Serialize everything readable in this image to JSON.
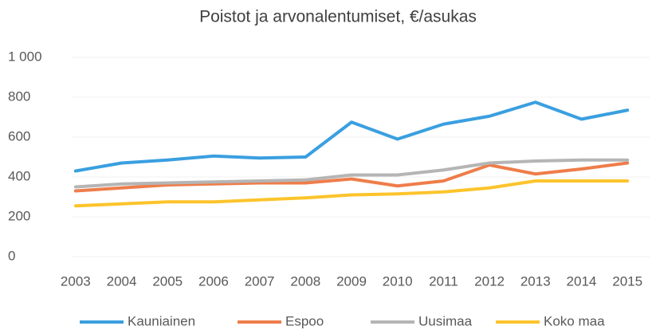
{
  "chart_data": {
    "type": "line",
    "title": "Poistot ja arvonalentumiset, €/asukas",
    "categories": [
      "2003",
      "2004",
      "2005",
      "2006",
      "2007",
      "2008",
      "2009",
      "2010",
      "2011",
      "2012",
      "2013",
      "2014",
      "2015"
    ],
    "series": [
      {
        "name": "Kauniainen",
        "color": "#3a9fe0",
        "values": [
          430,
          470,
          485,
          505,
          495,
          500,
          675,
          590,
          665,
          705,
          775,
          690,
          735
        ]
      },
      {
        "name": "Espoo",
        "color": "#ee7d4a",
        "values": [
          330,
          345,
          360,
          365,
          370,
          370,
          390,
          355,
          380,
          460,
          415,
          440,
          470
        ]
      },
      {
        "name": "Uusimaa",
        "color": "#b5b5b5",
        "values": [
          350,
          365,
          370,
          375,
          380,
          385,
          410,
          410,
          435,
          470,
          480,
          485,
          485
        ]
      },
      {
        "name": "Koko maa",
        "color": "#fcc42c",
        "values": [
          255,
          265,
          275,
          275,
          285,
          295,
          310,
          315,
          325,
          345,
          380,
          380,
          380
        ]
      }
    ],
    "ylim": [
      0,
      1000
    ],
    "yticks": [
      0,
      200,
      400,
      600,
      800,
      {
        "value": 1000,
        "label": "1 000"
      }
    ],
    "grid": true,
    "legend": "bottom"
  }
}
